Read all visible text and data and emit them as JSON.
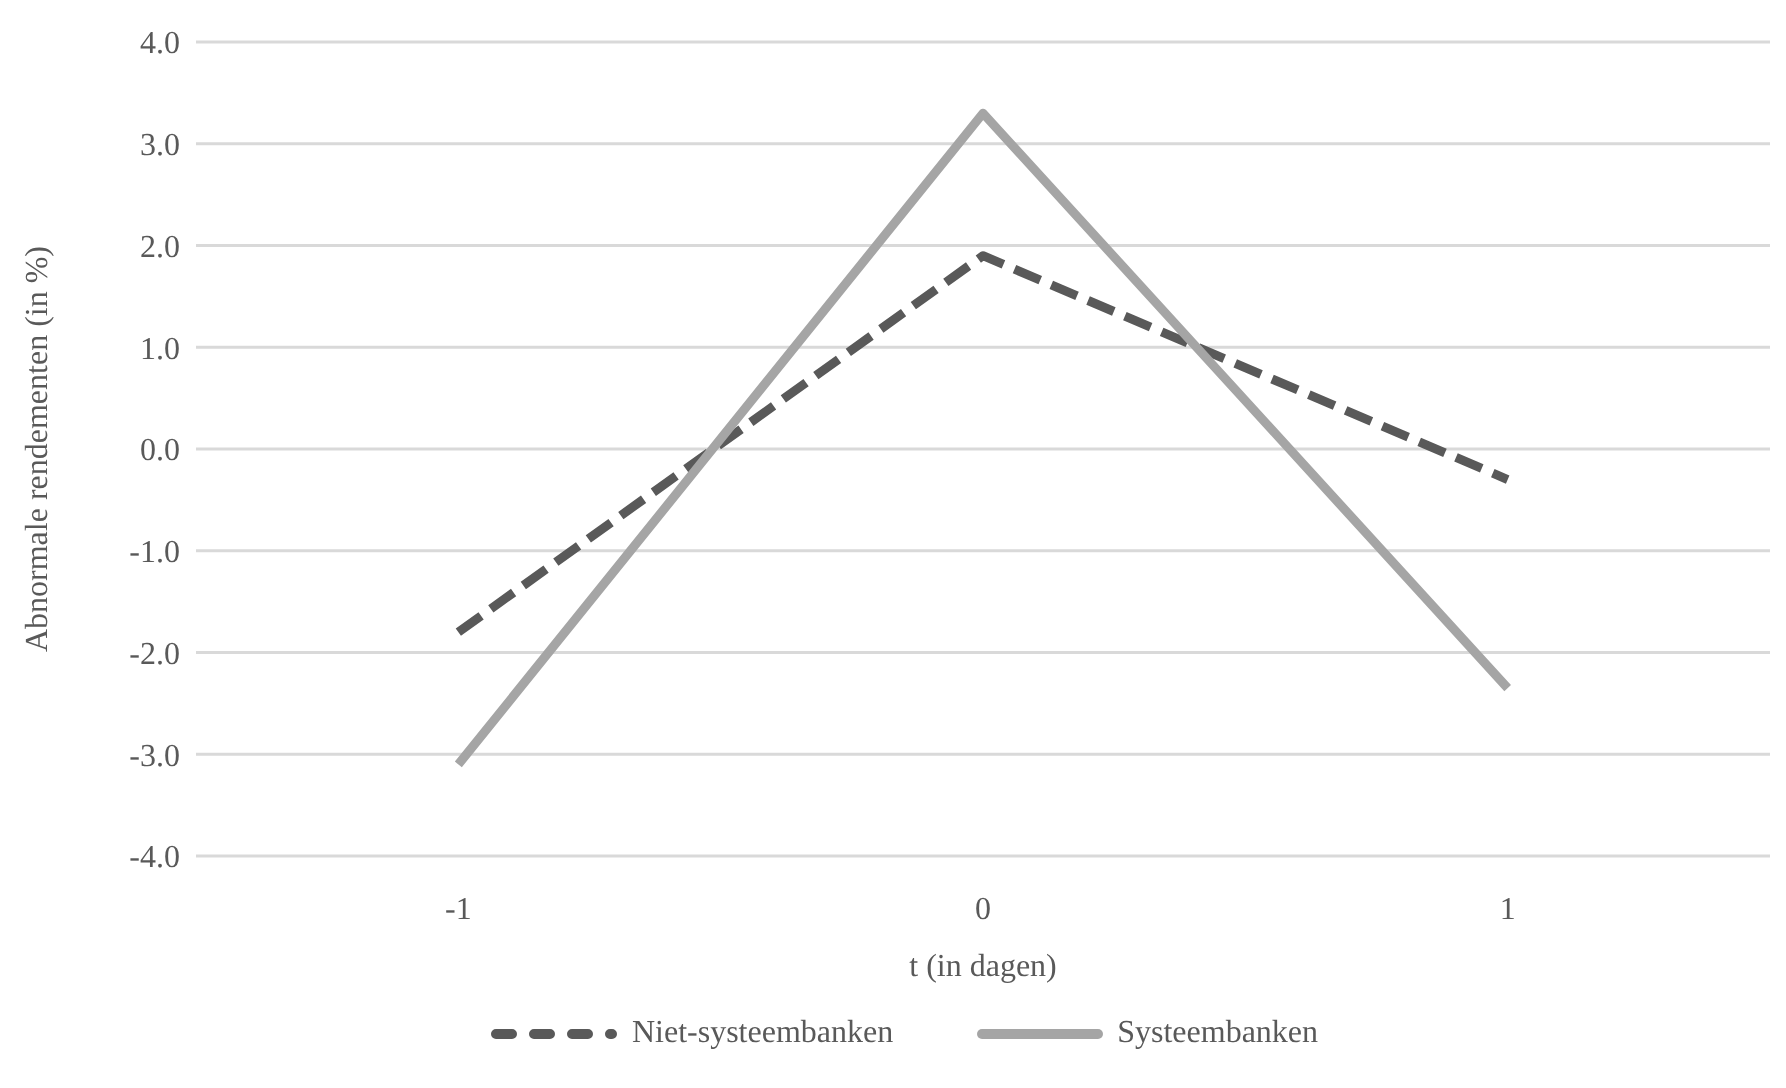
{
  "chart_data": {
    "type": "line",
    "xlabel": "t (in dagen)",
    "ylabel": "Abnormale rendementen (in %)",
    "categories": [
      "-1",
      "0",
      "1"
    ],
    "series": [
      {
        "name": "Niet-systeembanken",
        "color": "#595959",
        "line_style": "dashed",
        "values": [
          -1.8,
          1.9,
          -0.3
        ]
      },
      {
        "name": "Systeembanken",
        "color": "#a5a5a5",
        "line_style": "solid",
        "values": [
          -3.1,
          3.3,
          -2.35
        ]
      }
    ],
    "ylim": [
      -4,
      4
    ],
    "yticks": [
      {
        "value": -4,
        "label": "-4.0"
      },
      {
        "value": -3,
        "label": "-3.0"
      },
      {
        "value": -2,
        "label": "-2.0"
      },
      {
        "value": -1,
        "label": "-1.0"
      },
      {
        "value": 0,
        "label": "0.0"
      },
      {
        "value": 1,
        "label": "1.0"
      },
      {
        "value": 2,
        "label": "2.0"
      },
      {
        "value": 3,
        "label": "3.0"
      },
      {
        "value": 4,
        "label": "4.0"
      }
    ],
    "grid": "y",
    "legend": "bottom",
    "marker": "none"
  }
}
